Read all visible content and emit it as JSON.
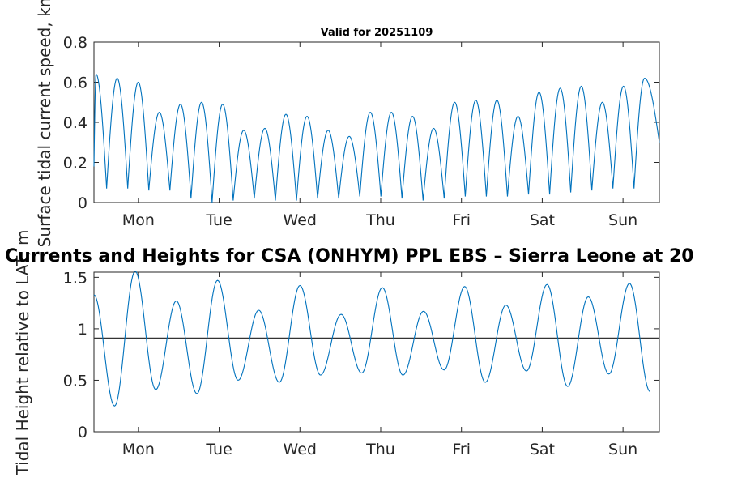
{
  "chart_data": [
    {
      "type": "line",
      "title": "Valid for 20251109",
      "ylabel": "Surface tidal current speed, kn",
      "xlabel": "",
      "x_tick_labels": [
        "Mon",
        "Tue",
        "Wed",
        "Thu",
        "Fri",
        "Sat",
        "Sun"
      ],
      "x_tick_days": [
        0.55,
        1.55,
        2.55,
        3.55,
        4.55,
        5.55,
        6.55
      ],
      "xlim_days": [
        0,
        7
      ],
      "ylim": [
        0,
        0.8
      ],
      "y_ticks": [
        0,
        0.2,
        0.4,
        0.6,
        0.8
      ],
      "y_tick_labels": [
        "0",
        "0.2",
        "0.4",
        "0.6",
        "0.8"
      ],
      "grid": false,
      "series": [
        {
          "name": "current speed",
          "color": "#0072BD",
          "peaks": [
            0.64,
            0.62,
            0.6,
            0.45,
            0.49,
            0.5,
            0.49,
            0.36,
            0.37,
            0.44,
            0.43,
            0.36,
            0.33,
            0.45,
            0.45,
            0.43,
            0.37,
            0.5,
            0.51,
            0.51,
            0.43,
            0.55,
            0.57,
            0.58,
            0.5,
            0.58,
            0.62
          ],
          "troughs": [
            0.07,
            0.07,
            0.06,
            0.06,
            0.02,
            0.0,
            0.01,
            0.02,
            0.01,
            0.01,
            0.02,
            0.02,
            0.03,
            0.03,
            0.02,
            0.01,
            0.02,
            0.03,
            0.03,
            0.03,
            0.04,
            0.04,
            0.05,
            0.06,
            0.07,
            0.07
          ],
          "start_value": 0.18,
          "end_value": 0.3
        }
      ]
    },
    {
      "type": "line",
      "title": "Currents and Heights for CSA (ONHYM) PPL EBS  – Sierra Leone at 20",
      "ylabel": "Tidal Height relative to LAT, m",
      "xlabel": "",
      "x_tick_labels": [
        "Mon",
        "Tue",
        "Wed",
        "Thu",
        "Fri",
        "Sat",
        "Sun"
      ],
      "x_tick_days": [
        0.55,
        1.55,
        2.55,
        3.55,
        4.55,
        5.55,
        6.55
      ],
      "xlim_days": [
        0,
        7
      ],
      "ylim": [
        0,
        1.55
      ],
      "y_ticks": [
        0,
        0.5,
        1,
        1.5
      ],
      "y_tick_labels": [
        "0",
        "0.5",
        "1",
        "1.5"
      ],
      "grid": false,
      "reference_line": {
        "value": 0.91,
        "color": "#333333"
      },
      "series": [
        {
          "name": "tidal height",
          "color": "#0072BD",
          "extrema_values": [
            1.33,
            0.25,
            1.56,
            0.41,
            1.27,
            0.37,
            1.47,
            0.5,
            1.18,
            0.48,
            1.42,
            0.55,
            1.14,
            0.57,
            1.4,
            0.55,
            1.17,
            0.6,
            1.41,
            0.48,
            1.23,
            0.59,
            1.43,
            0.44,
            1.31,
            0.56,
            1.44,
            0.39
          ]
        }
      ]
    }
  ]
}
